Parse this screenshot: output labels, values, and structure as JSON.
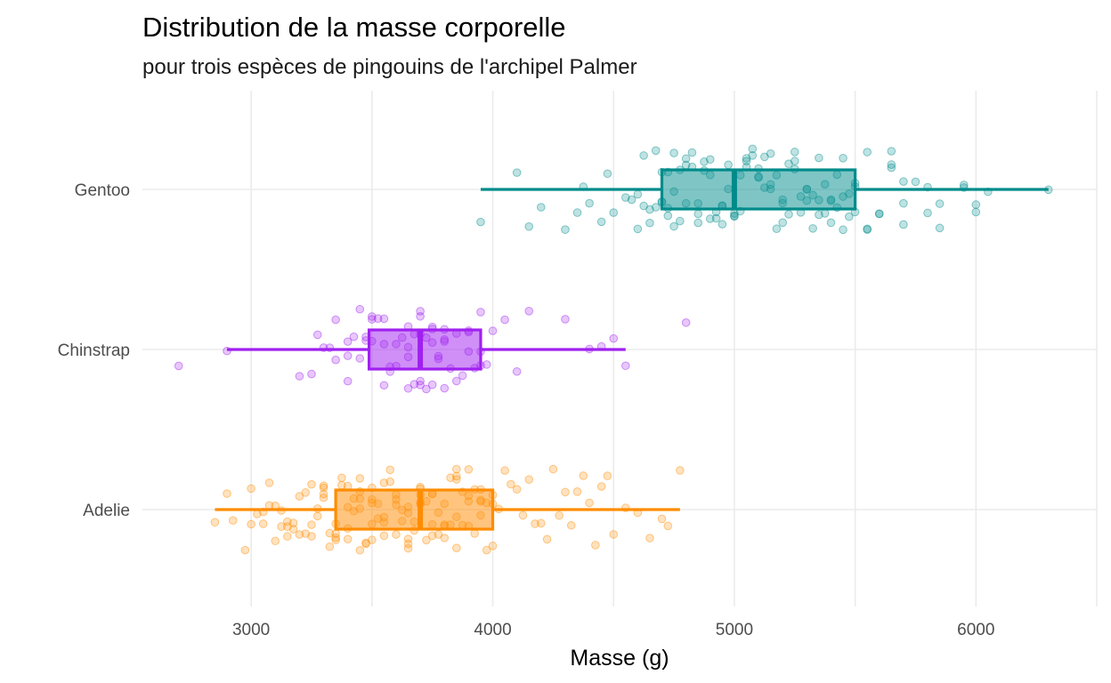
{
  "chart_data": {
    "type": "boxplot",
    "title": "Distribution de la masse corporelle",
    "subtitle": "pour trois espèces de pingouins de l'archipel Palmer",
    "xlabel": "Masse (g)",
    "ylabel": "",
    "xlim": [
      2550,
      6500
    ],
    "x_ticks": [
      3000,
      4000,
      5000,
      6000
    ],
    "x_tick_labels": [
      "3000",
      "4000",
      "5000",
      "6000"
    ],
    "categories": [
      "Adelie",
      "Chinstrap",
      "Gentoo"
    ],
    "grid": true,
    "legend": "none",
    "series": [
      {
        "name": "Adelie",
        "color": "#ff8c00",
        "whisker_low": 2850,
        "q1": 3350,
        "median": 3700,
        "q3": 4000,
        "whisker_high": 4775,
        "points": [
          2850,
          2900,
          2925,
          2975,
          3000,
          3050,
          3075,
          3100,
          3125,
          3150,
          3175,
          3200,
          3225,
          3250,
          3275,
          3300,
          3300,
          3325,
          3350,
          3350,
          3375,
          3400,
          3400,
          3425,
          3450,
          3450,
          3475,
          3500,
          3500,
          3525,
          3550,
          3550,
          3575,
          3600,
          3600,
          3625,
          3650,
          3650,
          3675,
          3700,
          3700,
          3725,
          3750,
          3750,
          3775,
          3800,
          3800,
          3825,
          3850,
          3850,
          3875,
          3900,
          3900,
          3925,
          3950,
          3950,
          3975,
          4000,
          4000,
          4050,
          4100,
          4150,
          4200,
          4250,
          4300,
          4350,
          4400,
          4450,
          4500,
          4550,
          4600,
          4650,
          4700,
          4725,
          4775,
          3025,
          3075,
          3125,
          3175,
          3225,
          3275,
          3325,
          3375,
          3425,
          3475,
          3525,
          3575,
          3625,
          3675,
          3725,
          3775,
          3825,
          3875,
          3925,
          3975,
          4025,
          4075,
          4125,
          4175,
          4225,
          4275,
          4325,
          4375,
          4425,
          4475,
          3000,
          3100,
          3200,
          3300,
          3400,
          3500,
          3600,
          3700,
          3800,
          3900,
          4000,
          3150,
          3250,
          3350,
          3450,
          3550,
          3650,
          3750,
          3850,
          3950,
          3050,
          3150,
          3250,
          3350,
          3450,
          3550,
          3650,
          3750,
          3850,
          3950,
          3400,
          3500,
          3600,
          3700,
          3800,
          3300,
          3500,
          3700,
          3900,
          3450,
          3650,
          3850
        ]
      },
      {
        "name": "Chinstrap",
        "color": "#a020f0",
        "whisker_low": 2900,
        "q1": 3488,
        "median": 3700,
        "q3": 3950,
        "whisker_high": 4550,
        "points": [
          2700,
          2900,
          3200,
          3250,
          3275,
          3300,
          3325,
          3350,
          3400,
          3425,
          3450,
          3450,
          3475,
          3500,
          3500,
          3525,
          3550,
          3575,
          3575,
          3600,
          3625,
          3650,
          3650,
          3675,
          3700,
          3700,
          3700,
          3725,
          3725,
          3750,
          3750,
          3775,
          3800,
          3800,
          3825,
          3850,
          3875,
          3900,
          3900,
          3925,
          3950,
          3950,
          3975,
          4000,
          4050,
          4100,
          4150,
          4300,
          4400,
          4450,
          4500,
          4550,
          3350,
          3400,
          3475,
          3550,
          3600,
          3650,
          3675,
          3700,
          3750,
          3775,
          3800,
          3850,
          3900,
          3950,
          3400,
          3500,
          3550,
          3650,
          3700,
          3750,
          3800,
          4800
        ]
      },
      {
        "name": "Gentoo",
        "color": "#008b8b",
        "whisker_low": 3950,
        "q1": 4700,
        "median": 5000,
        "q3": 5500,
        "whisker_high": 6300,
        "points": [
          3950,
          4100,
          4150,
          4200,
          4300,
          4350,
          4375,
          4400,
          4450,
          4475,
          4500,
          4550,
          4575,
          4600,
          4625,
          4650,
          4650,
          4675,
          4700,
          4700,
          4725,
          4725,
          4750,
          4750,
          4775,
          4800,
          4800,
          4825,
          4850,
          4850,
          4875,
          4900,
          4900,
          4925,
          4950,
          4950,
          4975,
          5000,
          5000,
          5025,
          5050,
          5050,
          5075,
          5100,
          5100,
          5125,
          5150,
          5150,
          5175,
          5200,
          5200,
          5225,
          5250,
          5250,
          5275,
          5300,
          5300,
          5325,
          5350,
          5350,
          5375,
          5400,
          5400,
          5425,
          5450,
          5450,
          5475,
          5500,
          5500,
          5550,
          5550,
          5600,
          5600,
          5650,
          5650,
          5700,
          5700,
          5750,
          5800,
          5850,
          5850,
          5950,
          6000,
          6050,
          6300,
          4625,
          4675,
          4725,
          4775,
          4825,
          4875,
          4925,
          4975,
          5025,
          5075,
          5125,
          5175,
          5225,
          5275,
          5325,
          5375,
          5425,
          5475,
          4600,
          4700,
          4800,
          4900,
          5000,
          5100,
          5200,
          5300,
          5400,
          5500,
          5650,
          4850,
          5050,
          5250,
          5450,
          5700,
          5950,
          4750,
          4950,
          5150,
          5350,
          5550,
          5800,
          6000
        ]
      }
    ]
  }
}
